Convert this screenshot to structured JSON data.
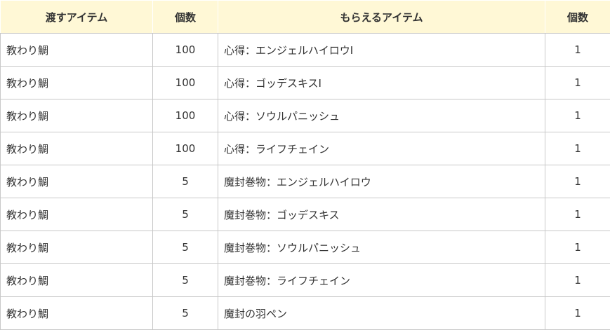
{
  "colors": {
    "header_bg": "#fff8d6",
    "border": "#c8c8c8"
  },
  "headers": [
    "渡すアイテム",
    "個数",
    "もらえるアイテム",
    "個数"
  ],
  "rows": [
    [
      "教わり鯛",
      "100",
      "心得：エンジェルハイロウⅠ",
      "1"
    ],
    [
      "教わり鯛",
      "100",
      "心得：ゴッデスキスⅠ",
      "1"
    ],
    [
      "教わり鯛",
      "100",
      "心得：ソウルパニッシュ",
      "1"
    ],
    [
      "教わり鯛",
      "100",
      "心得：ライフチェイン",
      "1"
    ],
    [
      "教わり鯛",
      "5",
      "魔封巻物：エンジェルハイロウ",
      "1"
    ],
    [
      "教わり鯛",
      "5",
      "魔封巻物：ゴッデスキス",
      "1"
    ],
    [
      "教わり鯛",
      "5",
      "魔封巻物：ソウルパニッシュ",
      "1"
    ],
    [
      "教わり鯛",
      "5",
      "魔封巻物：ライフチェイン",
      "1"
    ],
    [
      "教わり鯛",
      "5",
      "魔封の羽ペン",
      "1"
    ]
  ]
}
